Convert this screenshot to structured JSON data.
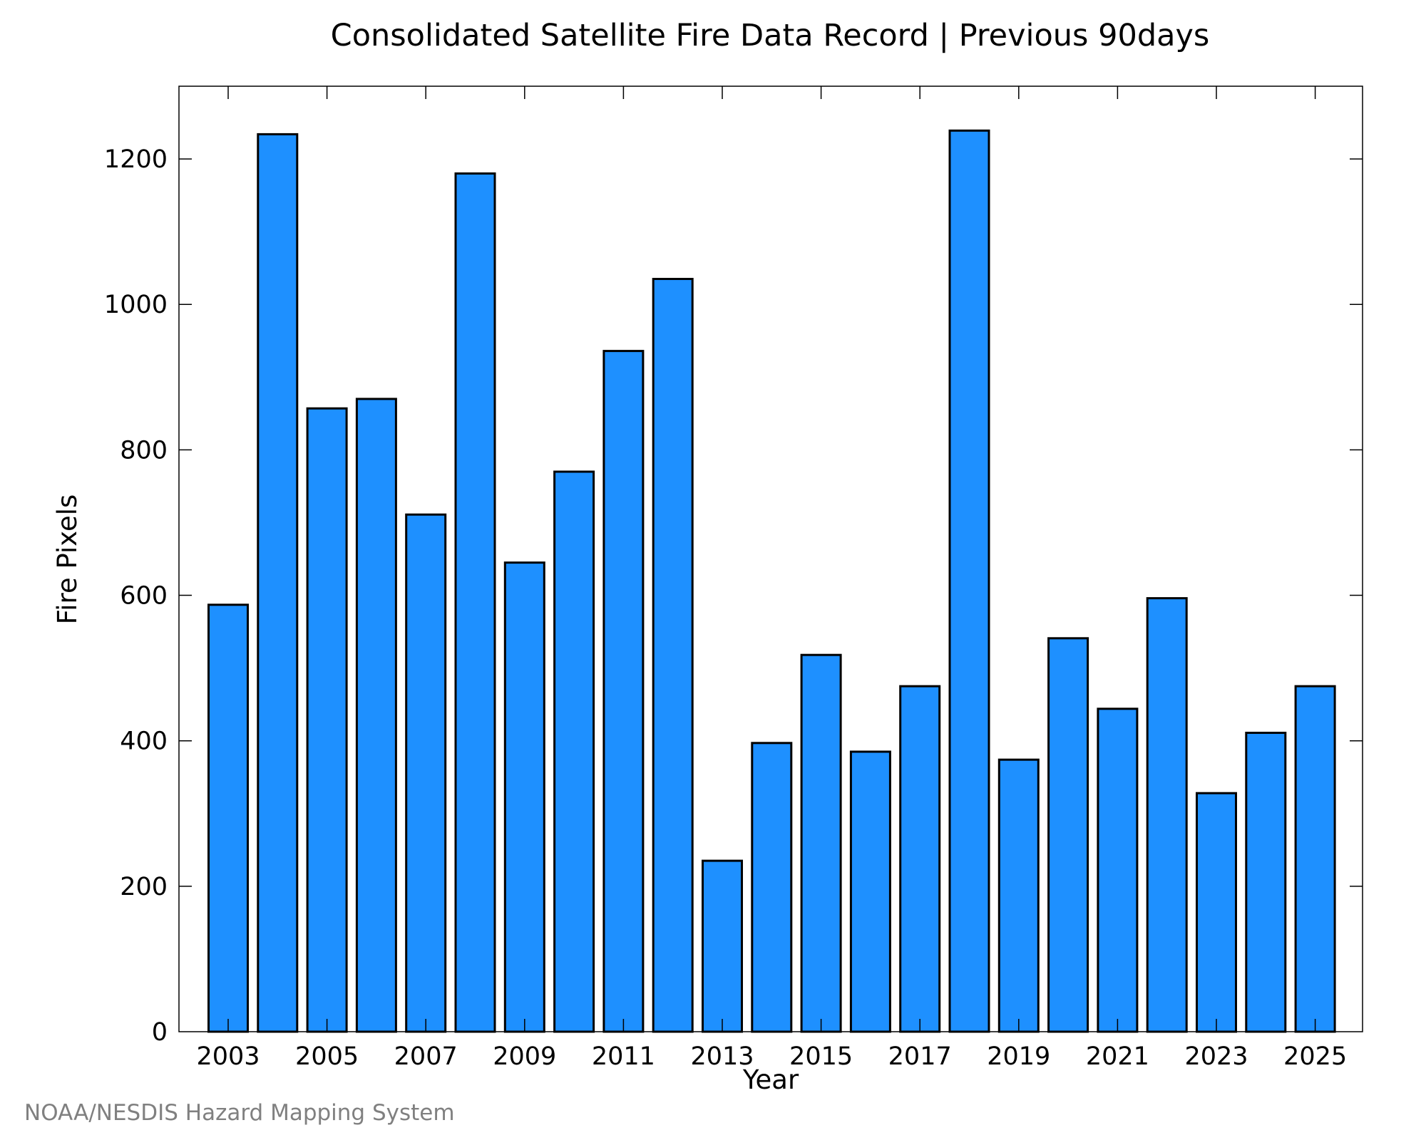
{
  "chart_data": {
    "type": "bar",
    "title": "Consolidated Satellite Fire Data Record | Previous 90days",
    "xlabel": "Year",
    "ylabel": "Fire Pixels",
    "categories": [
      "2003",
      "2004",
      "2005",
      "2006",
      "2007",
      "2008",
      "2009",
      "2010",
      "2011",
      "2012",
      "2013",
      "2014",
      "2015",
      "2016",
      "2017",
      "2018",
      "2019",
      "2020",
      "2021",
      "2022",
      "2023",
      "2024",
      "2025"
    ],
    "values": [
      587,
      1234,
      857,
      870,
      711,
      1180,
      645,
      770,
      936,
      1035,
      235,
      397,
      518,
      385,
      475,
      1239,
      374,
      541,
      444,
      596,
      328,
      411,
      475
    ],
    "xticks": [
      "2003",
      "2005",
      "2007",
      "2009",
      "2011",
      "2013",
      "2015",
      "2017",
      "2019",
      "2021",
      "2023",
      "2025"
    ],
    "yticks": [
      0,
      200,
      400,
      600,
      800,
      1000,
      1200
    ],
    "ylim": [
      0,
      1300
    ],
    "grid": false,
    "bar_color": "#1e90ff"
  },
  "footer": {
    "credit": "NOAA/NESDIS Hazard Mapping System"
  }
}
